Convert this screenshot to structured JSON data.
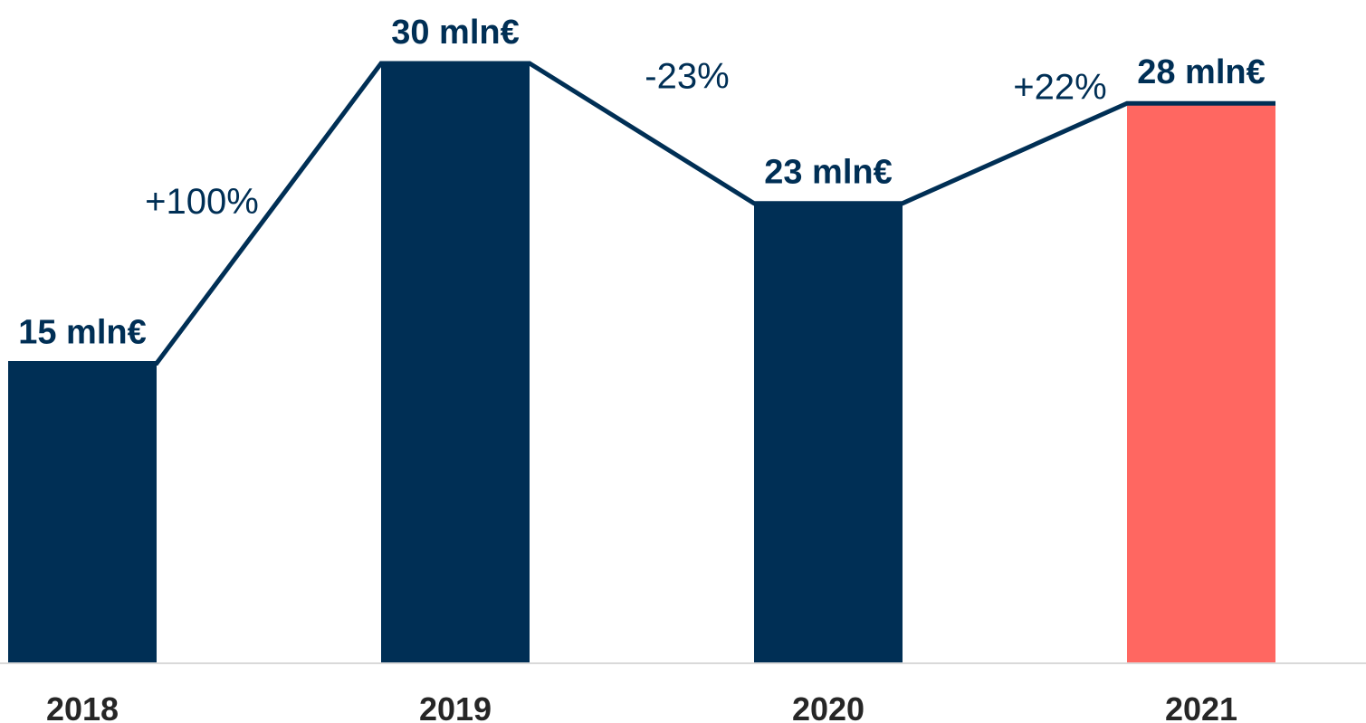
{
  "chart_data": {
    "type": "bar",
    "categories": [
      "2018",
      "2019",
      "2020",
      "2021"
    ],
    "values": [
      15,
      30,
      23,
      28
    ],
    "value_labels": [
      "15 mln€",
      "30 mln€",
      "23 mln€",
      "28 mln€"
    ],
    "changes": [
      "+100%",
      "-23%",
      "+22%"
    ],
    "ylim": [
      0,
      30
    ],
    "grid": false,
    "legend": "none",
    "title": "",
    "xlabel": "",
    "ylabel": "",
    "colors": {
      "bar": "#002f55",
      "highlight": "#ff6761",
      "line": "#002f55",
      "label": "#002f55",
      "axis": "#d9d9d9",
      "tick": "#262626"
    },
    "highlight_index": 3
  }
}
